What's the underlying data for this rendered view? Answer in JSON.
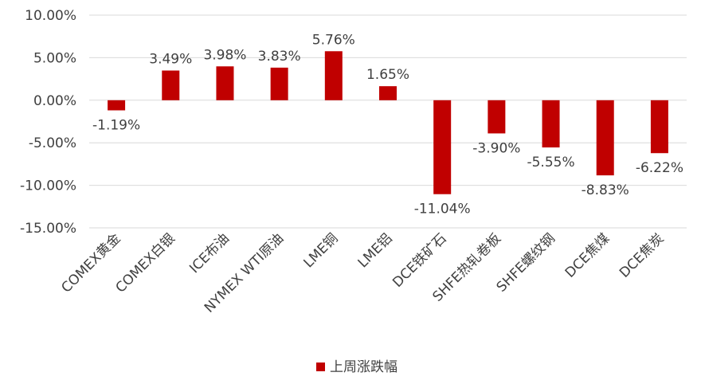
{
  "chart_data": {
    "type": "bar",
    "categories": [
      "COMEX黄金",
      "COMEX白银",
      "ICE布油",
      "NYMEX WTI原油",
      "LME铜",
      "LME铝",
      "DCE铁矿石",
      "SHFE热轧卷板",
      "SHFE螺纹钢",
      "DCE焦煤",
      "DCE焦炭"
    ],
    "series": [
      {
        "name": "上周涨跌幅",
        "values": [
          -1.19,
          3.49,
          3.98,
          3.83,
          5.76,
          1.65,
          -11.04,
          -3.9,
          -5.55,
          -8.83,
          -6.22
        ],
        "color": "#c00000"
      }
    ],
    "data_labels": [
      "-1.19%",
      "3.49%",
      "3.98%",
      "3.83%",
      "5.76%",
      "1.65%",
      "-11.04%",
      "-3.90%",
      "-5.55%",
      "-8.83%",
      "-6.22%"
    ],
    "y_ticks": [
      10,
      5,
      0,
      -5,
      -10,
      -15
    ],
    "y_tick_labels": [
      "10.00%",
      "5.00%",
      "0.00%",
      "-5.00%",
      "-10.00%",
      "-15.00%"
    ],
    "ylim": [
      -15,
      10
    ],
    "grid": true,
    "legend_position": "bottom"
  }
}
